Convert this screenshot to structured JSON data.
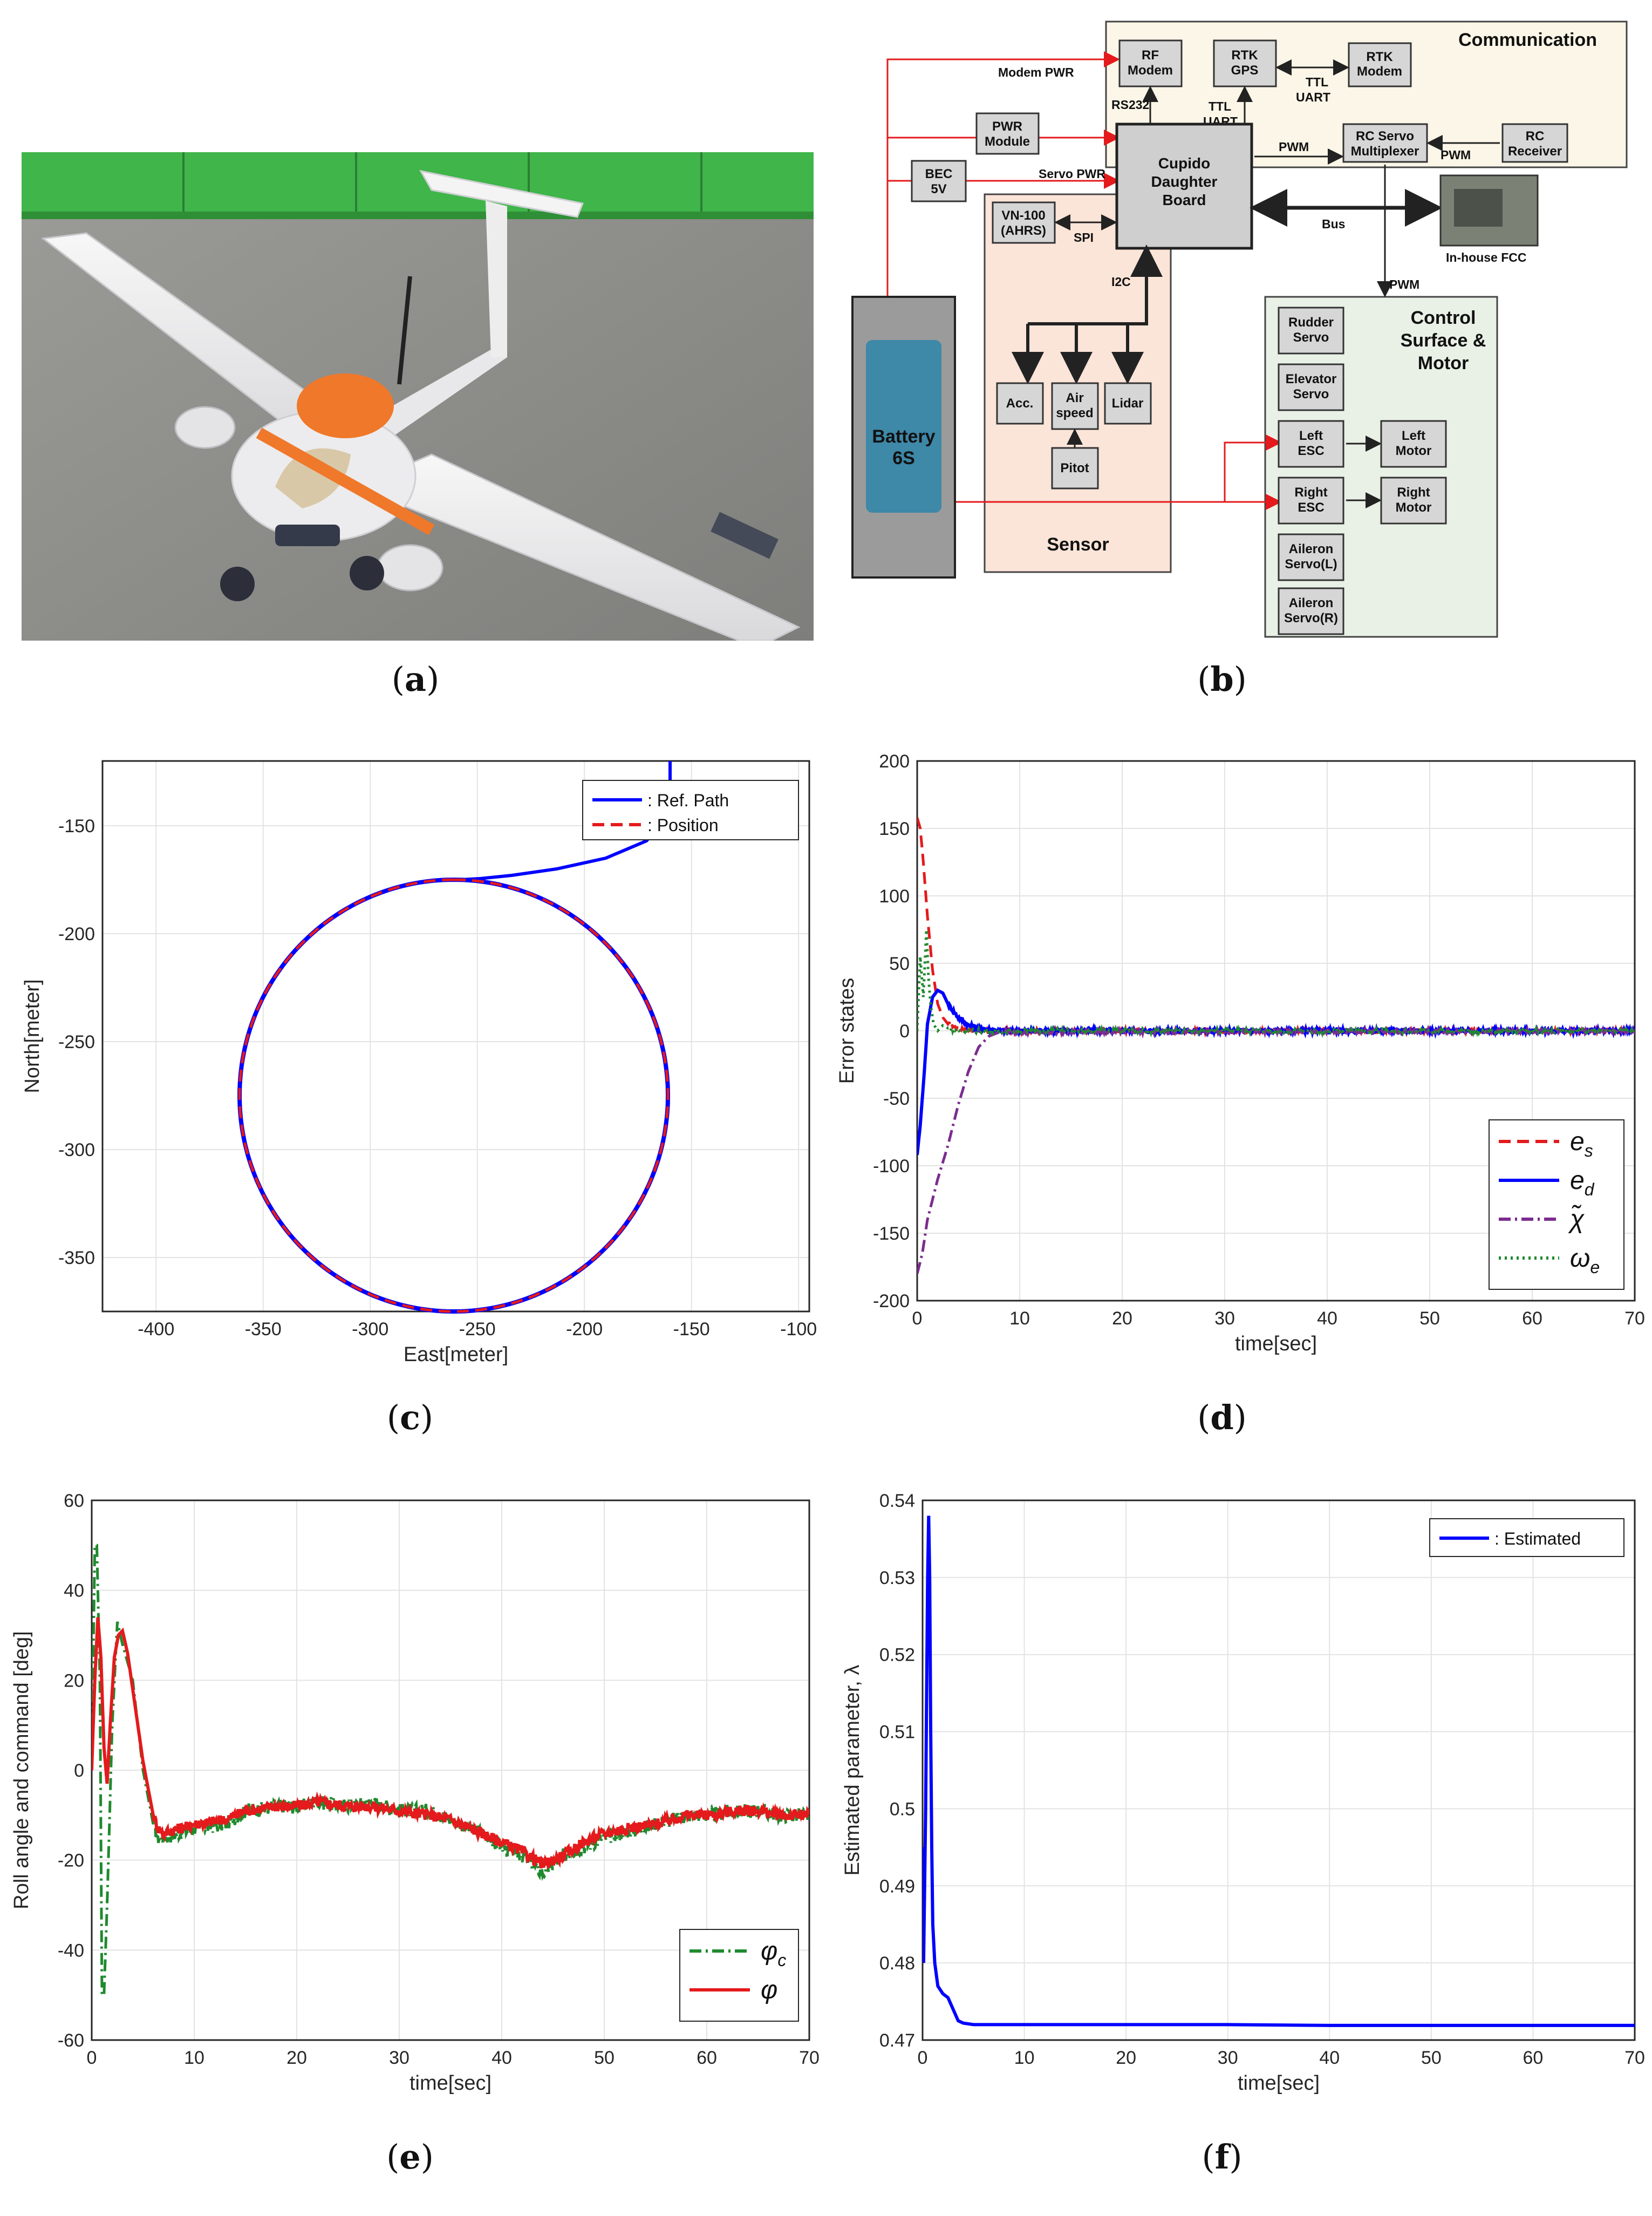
{
  "panels": {
    "a": "a",
    "b": "b",
    "c": "c",
    "d": "d",
    "e": "e",
    "f": "f"
  },
  "diagram": {
    "communication_title": "Communication",
    "rf_modem": [
      "RF",
      "Modem"
    ],
    "rtk_gps": [
      "RTK",
      "GPS"
    ],
    "rtk_modem": [
      "RTK",
      "Modem"
    ],
    "ttl_uart_right": [
      "TTL",
      "UART"
    ],
    "ttl_uart_left": [
      "TTL",
      "UART"
    ],
    "rs232": "RS232",
    "modem_pwr": "Modem PWR",
    "pwr_module": [
      "PWR",
      "Module"
    ],
    "bec": [
      "BEC",
      "5V"
    ],
    "servo_pwr": "Servo PWR",
    "cupido": [
      "Cupido",
      "Daughter",
      "Board"
    ],
    "pwm_1": "PWM",
    "pwm_2": "PWM",
    "pwm_3": "PWM",
    "rc_servo_mux": [
      "RC Servo",
      "Multiplexer"
    ],
    "rc_receiver": [
      "RC",
      "Receiver"
    ],
    "bus": "Bus",
    "inhouse_fcc": "In-house FCC",
    "vn100": [
      "VN-100",
      "(AHRS)"
    ],
    "spi": "SPI",
    "i2c": "I2C",
    "acc": "Acc.",
    "airspeed": [
      "Air",
      "speed"
    ],
    "lidar": "Lidar",
    "pitot": "Pitot",
    "sensor_title": "Sensor",
    "battery": [
      "Battery",
      "6S"
    ],
    "control_title": [
      "Control",
      "Surface &",
      "Motor"
    ],
    "rudder": [
      "Rudder",
      "Servo"
    ],
    "elevator": [
      "Elevator",
      "Servo"
    ],
    "left_esc": [
      "Left",
      "ESC"
    ],
    "left_motor": [
      "Left",
      "Motor"
    ],
    "right_esc": [
      "Right",
      "ESC"
    ],
    "right_motor": [
      "Right",
      "Motor"
    ],
    "aileron_l": [
      "Aileron",
      "Servo(L)"
    ],
    "aileron_r": [
      "Aileron",
      "Servo(R)"
    ]
  },
  "colors": {
    "blue": "#0000ff",
    "red": "#e41a1c",
    "green": "#1f8a2e",
    "purple": "#7b2d8e",
    "comm_bg": "#fbf6e7",
    "sensor_bg": "#fbe4d8",
    "control_bg": "#e9f1e6"
  },
  "chart_data": [
    {
      "id": "c",
      "type": "line",
      "xlabel": "East[meter]",
      "ylabel": "North[meter]",
      "xlim": [
        -425,
        -95
      ],
      "ylim": [
        -375,
        -120
      ],
      "xticks": [
        -400,
        -350,
        -300,
        -250,
        -200,
        -150,
        -100
      ],
      "yticks": [
        -150,
        -200,
        -250,
        -300,
        -350
      ],
      "grid": true,
      "legend_position": "top-right",
      "circle": {
        "center_east": -261,
        "center_north": -275,
        "radius": 100
      },
      "approach": {
        "x": [
          -160,
          -160,
          -162,
          -171,
          -190,
          -213,
          -234,
          -249,
          -258,
          -261
        ],
        "y": [
          -120,
          -135,
          -146,
          -157,
          -165,
          -170,
          -173,
          -174.5,
          -175,
          -175
        ]
      },
      "series": [
        {
          "name": ": Ref. Path",
          "color": "#0000ff",
          "style": "solid"
        },
        {
          "name": ": Position",
          "color": "#e41a1c",
          "style": "dashed"
        }
      ]
    },
    {
      "id": "d",
      "type": "line",
      "xlabel": "time[sec]",
      "ylabel": "Error states",
      "xlim": [
        0,
        70
      ],
      "ylim": [
        -200,
        200
      ],
      "xticks": [
        0,
        10,
        20,
        30,
        40,
        50,
        60,
        70
      ],
      "yticks": [
        200,
        150,
        100,
        50,
        0,
        -50,
        -100,
        -150,
        -200
      ],
      "grid": true,
      "legend_position": "bottom-right",
      "series": [
        {
          "name": "e_s",
          "label_main": "e",
          "label_sub": "s",
          "color": "#e41a1c",
          "style": "dashed",
          "x": [
            0,
            0.3,
            0.6,
            1.0,
            1.5,
            2.0,
            2.5,
            3.0,
            4.0,
            5.0,
            6.0,
            8.0,
            70
          ],
          "y": [
            158,
            150,
            125,
            85,
            45,
            20,
            10,
            5,
            2,
            1,
            0.5,
            0,
            0
          ]
        },
        {
          "name": "e_d",
          "label_main": "e",
          "label_sub": "d",
          "color": "#0000ff",
          "style": "solid",
          "x": [
            0,
            0.3,
            0.7,
            1.0,
            1.5,
            2.0,
            2.5,
            3.0,
            4.0,
            5.0,
            6.0,
            7.0,
            8.0,
            70
          ],
          "y": [
            -92,
            -70,
            -30,
            5,
            25,
            30,
            28,
            20,
            10,
            4,
            2,
            1,
            0,
            0
          ]
        },
        {
          "name": "χ̃",
          "label_main": "χ̃",
          "label_sub": "",
          "color": "#7b2d8e",
          "style": "dashdot",
          "x": [
            0,
            0.5,
            1.0,
            2.0,
            3.0,
            4.0,
            5.0,
            6.0,
            7.0,
            8.0,
            70
          ],
          "y": [
            -180,
            -165,
            -140,
            -110,
            -85,
            -55,
            -30,
            -12,
            -4,
            -1,
            0
          ]
        },
        {
          "name": "ω_e",
          "label_main": "ω",
          "label_sub": "e",
          "color": "#1f8a2e",
          "style": "dotted",
          "x": [
            0,
            0.3,
            0.6,
            0.9,
            1.1,
            1.3,
            1.6,
            2.0,
            2.5,
            3.0,
            4.0,
            70
          ],
          "y": [
            0,
            55,
            25,
            75,
            40,
            20,
            5,
            0,
            4,
            2,
            0,
            0
          ]
        }
      ]
    },
    {
      "id": "e",
      "type": "line",
      "xlabel": "time[sec]",
      "ylabel": "Roll angle and command [deg]",
      "xlim": [
        0,
        70
      ],
      "ylim": [
        -60,
        60
      ],
      "xticks": [
        0,
        10,
        20,
        30,
        40,
        50,
        60,
        70
      ],
      "yticks": [
        60,
        40,
        20,
        0,
        -20,
        -40,
        -60
      ],
      "grid": true,
      "legend_position": "bottom-right",
      "series": [
        {
          "name": "φ_c",
          "label_main": "φ",
          "label_sub": "c",
          "color": "#1f8a2e",
          "style": "dashdot",
          "x": [
            0,
            0.3,
            0.5,
            0.8,
            1.0,
            1.2,
            1.5,
            2.0,
            2.5,
            3.0,
            4.0,
            5.0,
            6.0,
            6.5,
            7,
            10,
            13,
            15,
            18,
            20,
            22,
            25,
            27,
            30,
            33,
            35,
            38,
            40,
            42,
            44,
            46,
            48,
            50,
            52,
            55,
            58,
            60,
            63,
            65,
            67,
            70
          ],
          "y": [
            0,
            50,
            50,
            20,
            -50,
            -50,
            -30,
            10,
            33,
            28,
            20,
            0,
            -12,
            -15,
            -15,
            -13,
            -12,
            -9,
            -8,
            -8,
            -7,
            -8,
            -7,
            -9,
            -9,
            -11,
            -14,
            -17,
            -19,
            -23,
            -19,
            -17,
            -15,
            -14,
            -12,
            -10,
            -10,
            -9,
            -9,
            -10,
            -10
          ]
        },
        {
          "name": "φ",
          "label_main": "φ",
          "label_sub": "",
          "color": "#e41a1c",
          "style": "solid",
          "x": [
            0,
            0.3,
            0.6,
            0.9,
            1.2,
            1.5,
            1.8,
            2.2,
            2.6,
            3.0,
            3.5,
            4.0,
            5.0,
            6.0,
            6.5,
            7,
            10,
            13,
            15,
            18,
            20,
            22,
            25,
            27,
            30,
            33,
            35,
            38,
            40,
            42,
            44,
            46,
            48,
            50,
            52,
            55,
            58,
            60,
            63,
            65,
            67,
            70
          ],
          "y": [
            0,
            20,
            34,
            25,
            5,
            -3,
            10,
            25,
            30,
            31,
            26,
            18,
            2,
            -10,
            -13,
            -14,
            -12,
            -11,
            -9,
            -8,
            -8,
            -7,
            -8,
            -8,
            -9,
            -10,
            -11,
            -14,
            -16,
            -18,
            -21,
            -19,
            -16,
            -14,
            -13,
            -12,
            -10,
            -10,
            -9,
            -9,
            -10,
            -10
          ]
        }
      ]
    },
    {
      "id": "f",
      "type": "line",
      "xlabel": "time[sec]",
      "ylabel": "Estimated parameter, λ",
      "xlim": [
        0,
        70
      ],
      "ylim": [
        0.47,
        0.54
      ],
      "xticks": [
        0,
        10,
        20,
        30,
        40,
        50,
        60,
        70
      ],
      "yticks": [
        0.54,
        0.53,
        0.52,
        0.51,
        0.5,
        0.49,
        0.48,
        0.47
      ],
      "ytick_labels": [
        "0.54",
        "0.53",
        "0.52",
        "0.51",
        "0.5",
        "0.49",
        "0.48",
        "0.47"
      ],
      "grid": true,
      "legend_position": "top-right",
      "series": [
        {
          "name": ": Estimated",
          "color": "#0000ff",
          "style": "solid",
          "x": [
            0,
            0.1,
            0.2,
            0.3,
            0.4,
            0.5,
            0.6,
            0.7,
            0.8,
            0.9,
            1.0,
            1.2,
            1.5,
            2.0,
            2.5,
            3.0,
            3.5,
            4.0,
            5.0,
            6.0,
            10,
            20,
            30,
            40,
            50,
            60,
            70
          ],
          "y": [
            0.495,
            0.48,
            0.49,
            0.5,
            0.515,
            0.53,
            0.538,
            0.53,
            0.51,
            0.495,
            0.485,
            0.48,
            0.477,
            0.476,
            0.4755,
            0.474,
            0.4725,
            0.4722,
            0.472,
            0.472,
            0.472,
            0.472,
            0.472,
            0.4719,
            0.4719,
            0.4719,
            0.4719
          ]
        }
      ]
    }
  ]
}
